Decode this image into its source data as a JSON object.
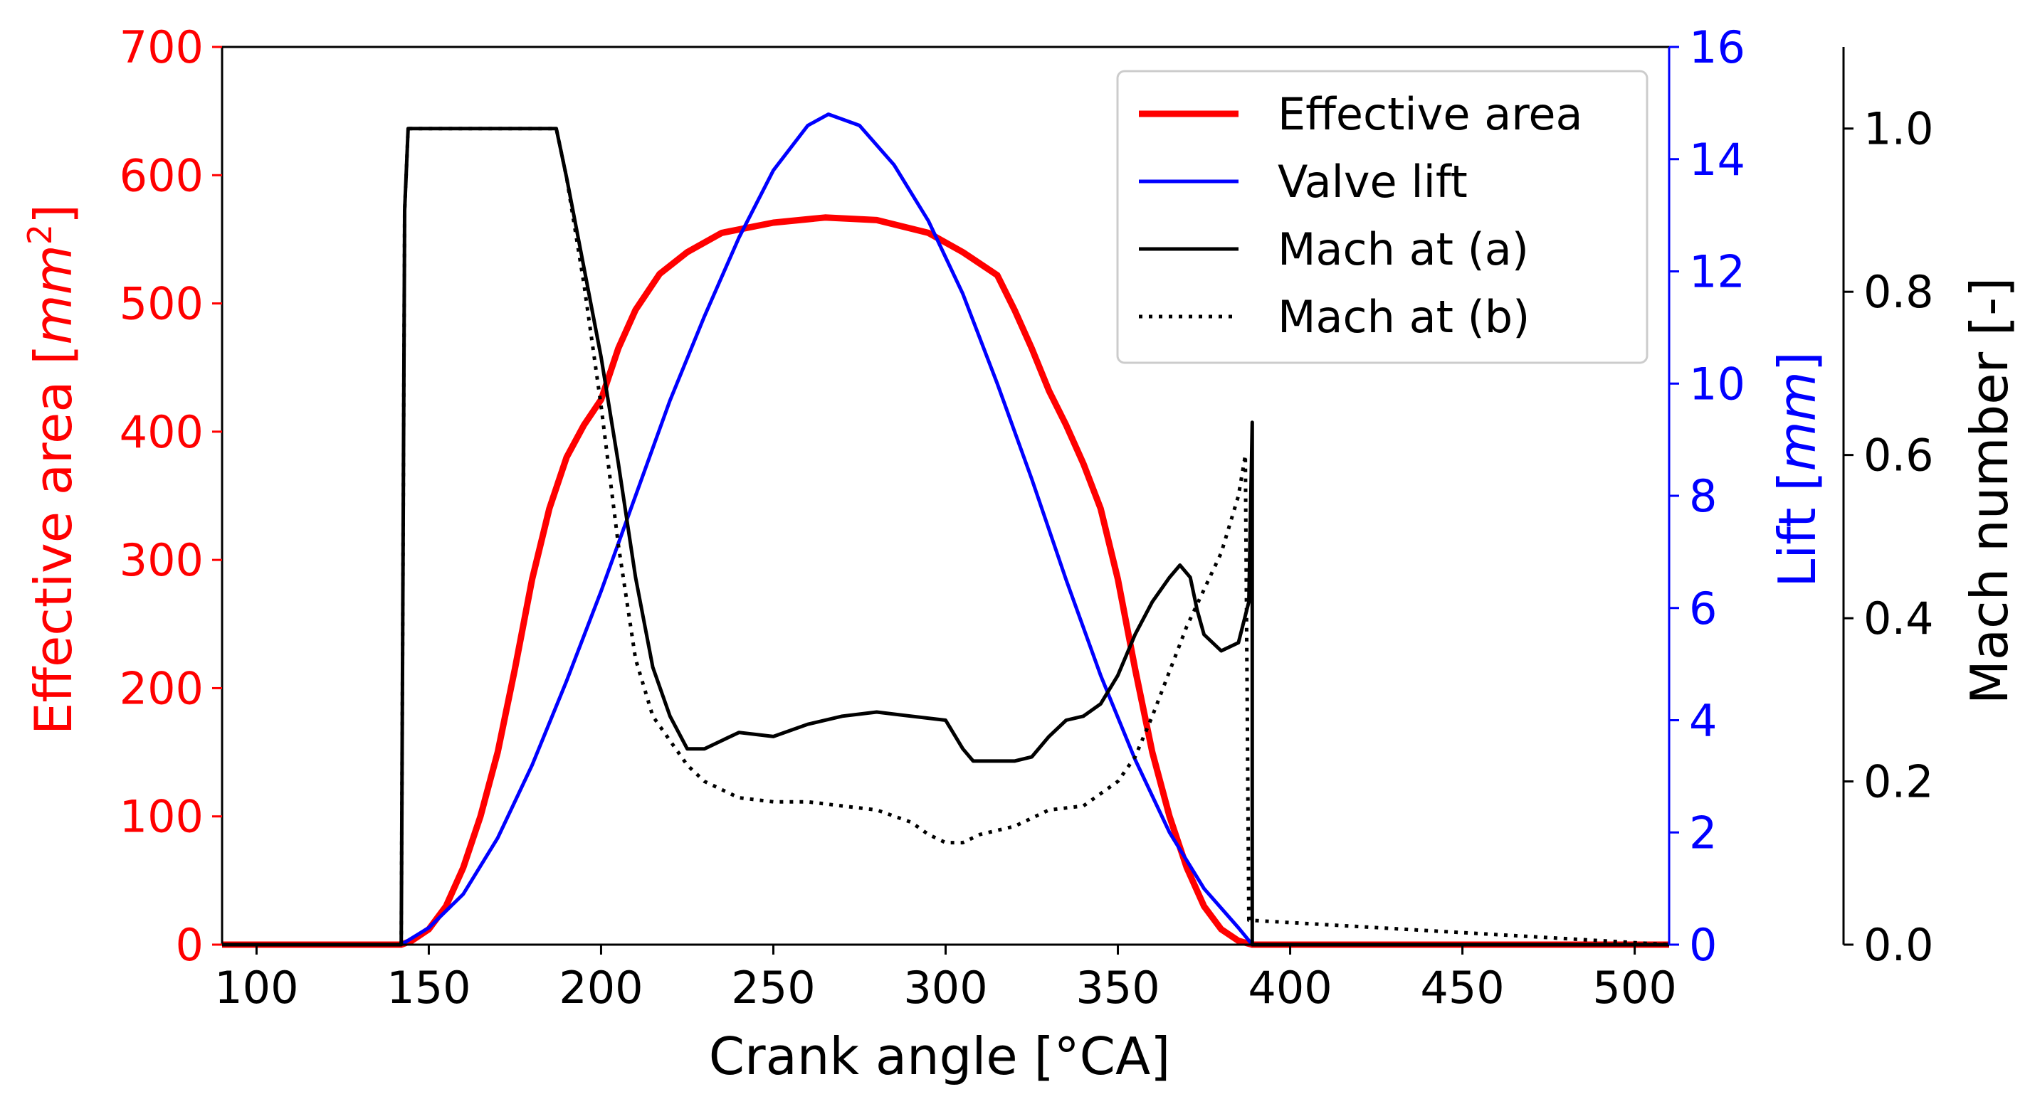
{
  "chart_data": {
    "type": "line",
    "xlabel": "Crank angle [°CA]",
    "xlim": [
      90,
      510
    ],
    "xticks": [
      100,
      150,
      200,
      250,
      300,
      350,
      400,
      450,
      500
    ],
    "ylabel_left": "Effective area [mm²]",
    "ylabel_left_parts": [
      "Effective area [",
      "mm",
      "2",
      "]"
    ],
    "ylim_left": [
      0,
      700
    ],
    "yticks_left": [
      0,
      100,
      200,
      300,
      400,
      500,
      600,
      700
    ],
    "ylabel_right": "Lift [mm]",
    "ylabel_right_parts": [
      "Lift [",
      "mm",
      "]"
    ],
    "ylim_right": [
      0,
      16
    ],
    "yticks_right": [
      0,
      2,
      4,
      6,
      8,
      10,
      12,
      14,
      16
    ],
    "ylabel_right2": "Mach number [-]",
    "ylim_right2": [
      0,
      1.1
    ],
    "yticks_right2": [
      "0.0",
      "0.2",
      "0.4",
      "0.6",
      "0.8",
      "1.0"
    ],
    "colors": {
      "area": "#ff0000",
      "lift": "#0000ff",
      "mach": "#000000"
    },
    "grid": false,
    "legend_position": "upper-right",
    "series": [
      {
        "name": "Effective area",
        "axis": "left",
        "color": "#ff0000",
        "style": "solid-thick",
        "x": [
          90,
          142,
          145,
          150,
          155,
          160,
          165,
          170,
          175,
          180,
          185,
          190,
          195,
          200,
          205,
          210,
          217,
          225,
          235,
          250,
          265,
          280,
          295,
          305,
          315,
          320,
          325,
          330,
          335,
          340,
          345,
          350,
          355,
          360,
          365,
          370,
          375,
          380,
          385,
          389,
          510
        ],
        "y": [
          0,
          0,
          3,
          12,
          30,
          60,
          100,
          150,
          215,
          285,
          340,
          380,
          405,
          425,
          465,
          495,
          523,
          540,
          555,
          563,
          567,
          565,
          555,
          540,
          522,
          495,
          465,
          432,
          405,
          375,
          340,
          285,
          215,
          150,
          100,
          60,
          30,
          12,
          3,
          0,
          0
        ]
      },
      {
        "name": "Valve lift",
        "axis": "right",
        "color": "#0000ff",
        "style": "solid",
        "x": [
          90,
          142,
          150,
          160,
          170,
          180,
          190,
          200,
          210,
          220,
          230,
          240,
          250,
          260,
          266,
          275,
          285,
          295,
          305,
          315,
          325,
          335,
          345,
          355,
          365,
          375,
          385,
          389,
          510
        ],
        "y": [
          0,
          0,
          0.3,
          0.9,
          1.9,
          3.2,
          4.7,
          6.3,
          8.0,
          9.7,
          11.2,
          12.6,
          13.8,
          14.6,
          14.8,
          14.6,
          13.9,
          12.9,
          11.6,
          10.0,
          8.3,
          6.5,
          4.8,
          3.3,
          2.0,
          1.0,
          0.3,
          0,
          0
        ]
      },
      {
        "name": "Mach at (a)",
        "axis": "right2",
        "color": "#000000",
        "style": "solid",
        "x": [
          90,
          142,
          143,
          144,
          187,
          190,
          195,
          200,
          205,
          210,
          215,
          220,
          225,
          230,
          240,
          250,
          260,
          270,
          280,
          290,
          300,
          305,
          308,
          315,
          320,
          325,
          330,
          335,
          340,
          345,
          350,
          355,
          360,
          365,
          368,
          371,
          373,
          375,
          380,
          385,
          388,
          389,
          389,
          510
        ],
        "y": [
          0,
          0,
          0.9,
          1.0,
          1.0,
          0.94,
          0.83,
          0.72,
          0.59,
          0.45,
          0.34,
          0.28,
          0.24,
          0.24,
          0.26,
          0.255,
          0.27,
          0.28,
          0.285,
          0.28,
          0.275,
          0.24,
          0.225,
          0.225,
          0.225,
          0.23,
          0.255,
          0.275,
          0.28,
          0.295,
          0.33,
          0.38,
          0.42,
          0.45,
          0.465,
          0.45,
          0.41,
          0.38,
          0.36,
          0.37,
          0.42,
          0.64,
          0,
          0
        ]
      },
      {
        "name": "Mach at (b)",
        "axis": "right2",
        "color": "#000000",
        "style": "dotted",
        "x": [
          90,
          142,
          143,
          144,
          187,
          190,
          195,
          200,
          205,
          210,
          215,
          220,
          225,
          230,
          240,
          250,
          260,
          270,
          280,
          290,
          295,
          300,
          305,
          310,
          320,
          330,
          340,
          350,
          355,
          360,
          370,
          380,
          385,
          387,
          388,
          510
        ],
        "y": [
          0,
          0,
          0.9,
          1.0,
          1.0,
          0.94,
          0.81,
          0.66,
          0.49,
          0.35,
          0.28,
          0.25,
          0.22,
          0.2,
          0.18,
          0.175,
          0.175,
          0.17,
          0.165,
          0.15,
          0.135,
          0.125,
          0.125,
          0.135,
          0.145,
          0.165,
          0.17,
          0.2,
          0.23,
          0.28,
          0.39,
          0.48,
          0.55,
          0.6,
          0.03,
          0
        ]
      }
    ]
  }
}
